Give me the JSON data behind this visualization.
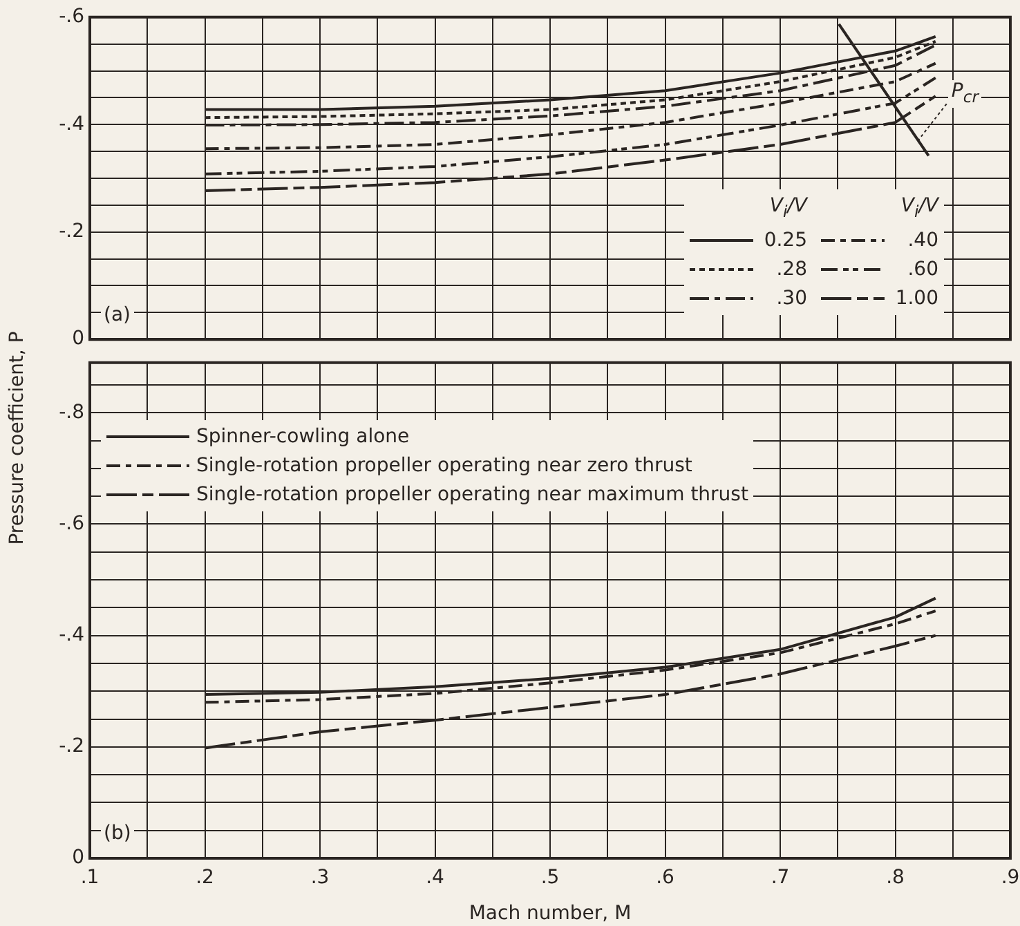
{
  "chart_data": [
    {
      "type": "line",
      "ylabel": "Pressure coefficient, P",
      "legend_title": "V$_{i}$/V",
      "legend": "bottom right",
      "grid": true,
      "tick_labels": "y",
      "marker": "none",
      "annotations": [
        "(a)",
        {
          "text": "P$_{cr}$",
          "x": 0.82,
          "y": -0.37
        }
      ],
      "series": [
        {
          "name": "0.25",
          "color": "#2a2522",
          "line_style": "solid",
          "x": [
            0.2,
            0.3,
            0.4,
            0.5,
            0.6,
            0.7,
            0.8,
            0.835
          ],
          "values": [
            -0.428,
            -0.428,
            -0.434,
            -0.446,
            -0.463,
            -0.496,
            -0.537,
            -0.564
          ]
        },
        {
          "name": ".28",
          "color": "#2a2522",
          "line_style": "dotted",
          "x": [
            0.2,
            0.3,
            0.4,
            0.5,
            0.6,
            0.7,
            0.8,
            0.835
          ],
          "values": [
            -0.413,
            -0.415,
            -0.42,
            -0.428,
            -0.446,
            -0.48,
            -0.525,
            -0.555
          ]
        },
        {
          "name": ".30",
          "color": "#2a2522",
          "line_style": "dashdot",
          "x": [
            0.2,
            0.3,
            0.4,
            0.5,
            0.6,
            0.7,
            0.8,
            0.835
          ],
          "values": [
            -0.399,
            -0.4,
            -0.404,
            -0.416,
            -0.434,
            -0.463,
            -0.51,
            -0.548
          ]
        },
        {
          "name": ".40",
          "color": "#2a2522",
          "line_style": "dashed",
          "x": [
            0.2,
            0.3,
            0.4,
            0.5,
            0.6,
            0.7,
            0.8,
            0.835
          ],
          "values": [
            -0.355,
            -0.357,
            -0.363,
            -0.381,
            -0.404,
            -0.44,
            -0.48,
            -0.514
          ]
        },
        {
          "name": ".60",
          "color": "#2a2522",
          "line_style": "dashdotdot",
          "x": [
            0.2,
            0.3,
            0.4,
            0.5,
            0.6,
            0.7,
            0.8,
            0.835
          ],
          "values": [
            -0.308,
            -0.313,
            -0.322,
            -0.34,
            -0.363,
            -0.399,
            -0.44,
            -0.487
          ]
        },
        {
          "name": "1.00",
          "color": "#2a2522",
          "line_style": "longdash",
          "x": [
            0.2,
            0.3,
            0.4,
            0.5,
            0.6,
            0.7,
            0.8,
            0.835
          ],
          "values": [
            -0.277,
            -0.283,
            -0.292,
            -0.308,
            -0.334,
            -0.363,
            -0.404,
            -0.453
          ]
        },
        {
          "color": "#2a2522",
          "line_style": "solid",
          "x": [
            0.751,
            0.829
          ],
          "values": [
            -0.587,
            -0.342
          ]
        }
      ],
      "xlim": [
        0.1,
        0.9
      ],
      "ylim": [
        0,
        -0.6
      ],
      "xticks": [
        {
          "value": 0.1,
          "label": null
        },
        {
          "value": 0.15,
          "label": null
        },
        {
          "value": 0.2,
          "label": null
        },
        {
          "value": 0.25,
          "label": null
        },
        {
          "value": 0.3,
          "label": null
        },
        {
          "value": 0.35,
          "label": null
        },
        {
          "value": 0.4,
          "label": null
        },
        {
          "value": 0.45,
          "label": null
        },
        {
          "value": 0.5,
          "label": null
        },
        {
          "value": 0.55,
          "label": null
        },
        {
          "value": 0.6,
          "label": null
        },
        {
          "value": 0.65,
          "label": null
        },
        {
          "value": 0.7,
          "label": null
        },
        {
          "value": 0.75,
          "label": null
        },
        {
          "value": 0.8,
          "label": null
        },
        {
          "value": 0.85,
          "label": null
        },
        {
          "value": 0.9,
          "label": null
        }
      ],
      "yticks": [
        0,
        {
          "value": -0.05,
          "label": null
        },
        {
          "value": -0.1,
          "label": null
        },
        {
          "value": -0.15,
          "label": null
        },
        {
          "value": -0.2,
          "label": "-.2"
        },
        {
          "value": -0.25,
          "label": null
        },
        {
          "value": -0.3,
          "label": null
        },
        {
          "value": -0.35,
          "label": null
        },
        {
          "value": -0.4,
          "label": "-.4"
        },
        {
          "value": -0.45,
          "label": null
        },
        {
          "value": -0.5,
          "label": null
        },
        {
          "value": -0.55,
          "label": null
        },
        {
          "value": -0.6,
          "label": "-.6"
        }
      ]
    },
    {
      "type": "line",
      "xlabel": "Mach number, M",
      "legend": "top left",
      "grid": true,
      "marker": "none",
      "annotations": [
        "(b)"
      ],
      "x": [
        0.2,
        0.3,
        0.4,
        0.5,
        0.6,
        0.7,
        0.8,
        0.835
      ],
      "series": [
        {
          "name": "Spinner-cowling alone",
          "color": "#2a2522",
          "line_style": "solid",
          "values": [
            -0.294,
            -0.298,
            -0.308,
            -0.323,
            -0.343,
            -0.375,
            -0.433,
            -0.467
          ]
        },
        {
          "name": "Single-rotation propeller operating near zero thrust",
          "color": "#2a2522",
          "line_style": "dashed",
          "values": [
            -0.28,
            -0.285,
            -0.296,
            -0.315,
            -0.338,
            -0.369,
            -0.421,
            -0.444
          ]
        },
        {
          "name": "Single-rotation propeller operating near maximum thrust",
          "color": "#2a2522",
          "line_style": "longdash",
          "values": [
            -0.198,
            -0.227,
            -0.248,
            -0.271,
            -0.294,
            -0.331,
            -0.381,
            -0.4
          ]
        }
      ],
      "xlim": [
        0.1,
        0.9
      ],
      "ylim": [
        0,
        -0.89
      ],
      "xticks": [
        {
          "value": 0.1,
          "label": ".1"
        },
        {
          "value": 0.15,
          "label": null
        },
        {
          "value": 0.2,
          "label": ".2"
        },
        {
          "value": 0.25,
          "label": null
        },
        {
          "value": 0.3,
          "label": ".3"
        },
        {
          "value": 0.35,
          "label": null
        },
        {
          "value": 0.4,
          "label": ".4"
        },
        {
          "value": 0.45,
          "label": null
        },
        {
          "value": 0.5,
          "label": ".5"
        },
        {
          "value": 0.55,
          "label": null
        },
        {
          "value": 0.6,
          "label": ".6"
        },
        {
          "value": 0.65,
          "label": null
        },
        {
          "value": 0.7,
          "label": ".7"
        },
        {
          "value": 0.75,
          "label": null
        },
        {
          "value": 0.8,
          "label": ".8"
        },
        {
          "value": 0.85,
          "label": null
        },
        {
          "value": 0.9,
          "label": ".9"
        }
      ],
      "yticks": [
        0,
        {
          "value": -0.05,
          "label": null
        },
        {
          "value": -0.1,
          "label": null
        },
        {
          "value": -0.15,
          "label": null
        },
        {
          "value": -0.2,
          "label": "-.2"
        },
        {
          "value": -0.25,
          "label": null
        },
        {
          "value": -0.3,
          "label": null
        },
        {
          "value": -0.35,
          "label": null
        },
        {
          "value": -0.4,
          "label": "-.4"
        },
        {
          "value": -0.45,
          "label": null
        },
        {
          "value": -0.5,
          "label": null
        },
        {
          "value": -0.55,
          "label": null
        },
        {
          "value": -0.6,
          "label": "-.6"
        },
        {
          "value": -0.65,
          "label": null
        },
        {
          "value": -0.7,
          "label": null
        },
        {
          "value": -0.75,
          "label": null
        },
        {
          "value": -0.8,
          "label": "-.8"
        },
        {
          "value": -0.85,
          "label": null
        }
      ]
    }
  ]
}
